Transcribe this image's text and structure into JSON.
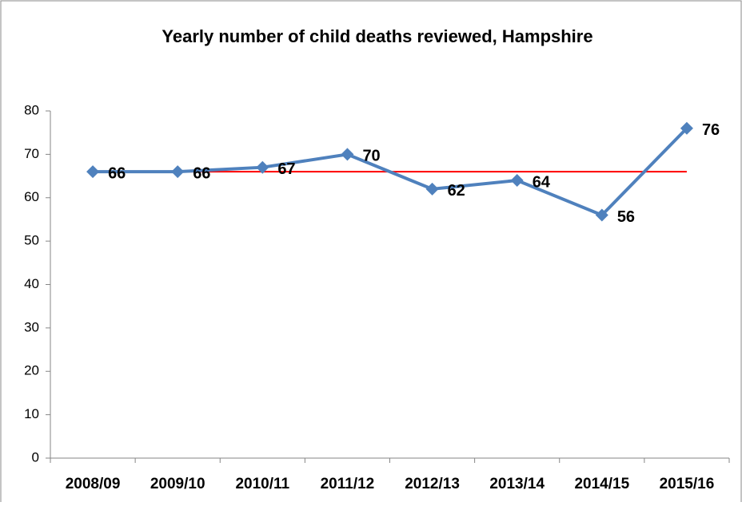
{
  "chart_data": {
    "type": "line",
    "title": "Yearly number of child deaths reviewed, Hampshire",
    "categories": [
      "2008/09",
      "2009/10",
      "2010/11",
      "2011/12",
      "2012/13",
      "2013/14",
      "2014/15",
      "2015/16"
    ],
    "series": [
      {
        "color": "#4f81bd",
        "values": [
          66,
          66,
          67,
          70,
          62,
          64,
          56,
          76
        ],
        "markers": true,
        "data_labels": true
      },
      {
        "color": "#ff0000",
        "values": [
          66,
          66,
          66,
          66,
          66,
          66,
          66,
          66
        ],
        "markers": false,
        "data_labels": false
      }
    ],
    "ylim": [
      0,
      80
    ],
    "yticks": [
      0,
      10,
      20,
      30,
      40,
      50,
      60,
      70,
      80
    ],
    "grid": false
  }
}
